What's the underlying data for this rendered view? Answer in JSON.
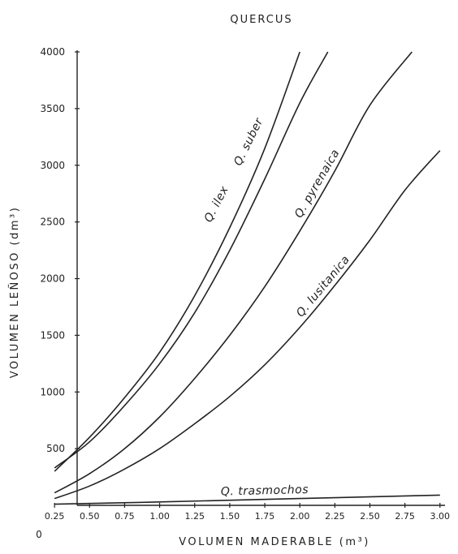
{
  "chart_data": {
    "type": "line",
    "title": "QUERCUS",
    "xlabel": "VOLUMEN MADERABLE (m³)",
    "ylabel": "VOLUMEN LEÑOSO (dm³)",
    "xlim": [
      0,
      3.0
    ],
    "ylim": [
      0,
      4000
    ],
    "origin_label": "0",
    "x_ticks": [
      0.25,
      0.5,
      0.75,
      1.0,
      1.25,
      1.5,
      1.75,
      2.0,
      2.25,
      2.5,
      2.75,
      3.0
    ],
    "x_tick_labels": [
      "0.25",
      "0.50",
      "0.75",
      "1.00",
      "1.25",
      "1.50",
      "1.75",
      "2.00",
      "2.25",
      "2.50",
      "2.75",
      "3.00"
    ],
    "y_ticks": [
      500,
      1000,
      1500,
      2000,
      2500,
      3000,
      3500,
      4000
    ],
    "y_tick_labels": [
      "500",
      "1000",
      "1500",
      "2000",
      "2500",
      "3000",
      "3500",
      "4000"
    ],
    "grid": false,
    "series": [
      {
        "name": "Q. ilex",
        "points": [
          [
            0.25,
            300
          ],
          [
            0.5,
            600
          ],
          [
            0.75,
            950
          ],
          [
            1.0,
            1350
          ],
          [
            1.25,
            1850
          ],
          [
            1.5,
            2450
          ],
          [
            1.75,
            3150
          ],
          [
            2.0,
            4000
          ]
        ]
      },
      {
        "name": "Q. suber",
        "points": [
          [
            0.25,
            330
          ],
          [
            0.5,
            560
          ],
          [
            0.75,
            880
          ],
          [
            1.0,
            1250
          ],
          [
            1.25,
            1700
          ],
          [
            1.5,
            2250
          ],
          [
            1.75,
            2880
          ],
          [
            2.0,
            3550
          ],
          [
            2.2,
            4000
          ]
        ]
      },
      {
        "name": "Q. pyrenaica",
        "points": [
          [
            0.25,
            110
          ],
          [
            0.5,
            280
          ],
          [
            0.75,
            500
          ],
          [
            1.0,
            780
          ],
          [
            1.25,
            1120
          ],
          [
            1.5,
            1500
          ],
          [
            1.75,
            1930
          ],
          [
            2.0,
            2420
          ],
          [
            2.25,
            2950
          ],
          [
            2.5,
            3530
          ],
          [
            2.8,
            4000
          ]
        ]
      },
      {
        "name": "Q. lusitanica",
        "points": [
          [
            0.25,
            60
          ],
          [
            0.5,
            170
          ],
          [
            0.75,
            320
          ],
          [
            1.0,
            500
          ],
          [
            1.25,
            720
          ],
          [
            1.5,
            960
          ],
          [
            1.75,
            1240
          ],
          [
            2.0,
            1570
          ],
          [
            2.25,
            1940
          ],
          [
            2.5,
            2340
          ],
          [
            2.75,
            2780
          ],
          [
            3.0,
            3130
          ]
        ]
      },
      {
        "name": "Q. trasmochos",
        "points": [
          [
            0.25,
            10
          ],
          [
            1.0,
            30
          ],
          [
            2.0,
            60
          ],
          [
            3.0,
            90
          ]
        ]
      }
    ]
  }
}
